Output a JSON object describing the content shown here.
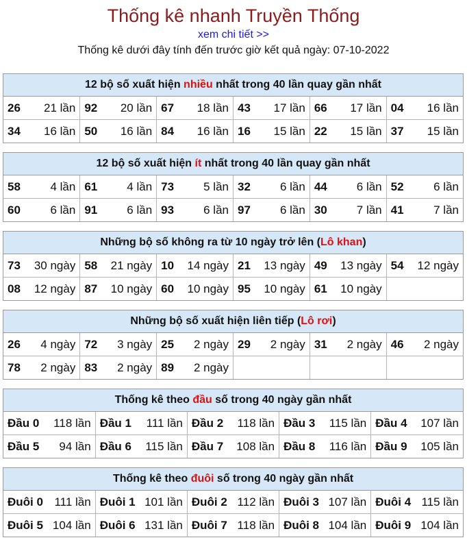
{
  "header": {
    "title": "Thống kê nhanh Truyền Thống",
    "link": "xem chi tiết >>",
    "subtitle": "Thống kê dưới đây tính đến trước giờ kết quả ngày: 07-10-2022"
  },
  "sec1": {
    "pre": "12 bộ số xuất hiện ",
    "hl": "nhiều",
    "post": " nhất trong 40 lần quay gần nhất",
    "rows": [
      [
        [
          "26",
          "21 lần"
        ],
        [
          "92",
          "20 lần"
        ],
        [
          "67",
          "18 lần"
        ],
        [
          "43",
          "17 lần"
        ],
        [
          "66",
          "17 lần"
        ],
        [
          "04",
          "16 lần"
        ]
      ],
      [
        [
          "34",
          "16 lần"
        ],
        [
          "50",
          "16 lần"
        ],
        [
          "84",
          "16 lần"
        ],
        [
          "16",
          "15 lần"
        ],
        [
          "22",
          "15 lần"
        ],
        [
          "37",
          "15 lần"
        ]
      ]
    ]
  },
  "sec2": {
    "pre": "12 bộ số xuất hiện ",
    "hl": "ít",
    "post": " nhất trong 40 lần quay gần nhất",
    "rows": [
      [
        [
          "58",
          "4 lần"
        ],
        [
          "61",
          "4 lần"
        ],
        [
          "73",
          "5 lần"
        ],
        [
          "32",
          "6 lần"
        ],
        [
          "44",
          "6 lần"
        ],
        [
          "52",
          "6 lần"
        ]
      ],
      [
        [
          "60",
          "6 lần"
        ],
        [
          "91",
          "6 lần"
        ],
        [
          "93",
          "6 lần"
        ],
        [
          "97",
          "6 lần"
        ],
        [
          "30",
          "7 lần"
        ],
        [
          "41",
          "7 lần"
        ]
      ]
    ]
  },
  "sec3": {
    "pre": "Những bộ số không ra từ 10 ngày trở lên (",
    "hl": "Lô khan",
    "post": ")",
    "rows": [
      [
        [
          "73",
          "30 ngày"
        ],
        [
          "58",
          "21 ngày"
        ],
        [
          "10",
          "14 ngày"
        ],
        [
          "21",
          "13 ngày"
        ],
        [
          "49",
          "13 ngày"
        ],
        [
          "54",
          "12 ngày"
        ]
      ],
      [
        [
          "08",
          "12 ngày"
        ],
        [
          "87",
          "10 ngày"
        ],
        [
          "60",
          "10 ngày"
        ],
        [
          "95",
          "10 ngày"
        ],
        [
          "61",
          "10 ngày"
        ],
        [
          "",
          ""
        ]
      ]
    ]
  },
  "sec4": {
    "pre": "Những bộ số xuất hiện liên tiếp (",
    "hl": "Lô rơi",
    "post": ")",
    "rows": [
      [
        [
          "26",
          "4 ngày"
        ],
        [
          "72",
          "3 ngày"
        ],
        [
          "25",
          "2 ngày"
        ],
        [
          "29",
          "2 ngày"
        ],
        [
          "31",
          "2 ngày"
        ],
        [
          "46",
          "2 ngày"
        ]
      ],
      [
        [
          "78",
          "2 ngày"
        ],
        [
          "83",
          "2 ngày"
        ],
        [
          "89",
          "2 ngày"
        ],
        [
          "",
          ""
        ],
        [
          "",
          ""
        ],
        [
          "",
          ""
        ]
      ]
    ]
  },
  "sec5": {
    "pre": "Thống kê theo ",
    "hl": "đầu",
    "post": " số trong 40 ngày gần nhất",
    "rows": [
      [
        [
          "Đầu 0",
          "118 lần"
        ],
        [
          "Đầu 1",
          "111 lần"
        ],
        [
          "Đầu 2",
          "118 lần"
        ],
        [
          "Đầu 3",
          "115 lần"
        ],
        [
          "Đầu 4",
          "107 lần"
        ]
      ],
      [
        [
          "Đầu 5",
          "94 lần"
        ],
        [
          "Đầu 6",
          "115 lần"
        ],
        [
          "Đầu 7",
          "108 lần"
        ],
        [
          "Đầu 8",
          "116 lần"
        ],
        [
          "Đầu 9",
          "105 lần"
        ]
      ]
    ]
  },
  "sec6": {
    "pre": "Thống kê theo ",
    "hl": "đuôi",
    "post": " số trong 40 ngày gần nhất",
    "rows": [
      [
        [
          "Đuôi 0",
          "111 lần"
        ],
        [
          "Đuôi 1",
          "101 lần"
        ],
        [
          "Đuôi 2",
          "112 lần"
        ],
        [
          "Đuôi 3",
          "107 lần"
        ],
        [
          "Đuôi 4",
          "115 lần"
        ]
      ],
      [
        [
          "Đuôi 5",
          "104 lần"
        ],
        [
          "Đuôi 6",
          "131 lần"
        ],
        [
          "Đuôi 7",
          "118 lần"
        ],
        [
          "Đuôi 8",
          "104 lần"
        ],
        [
          "Đuôi 9",
          "104 lần"
        ]
      ]
    ]
  }
}
